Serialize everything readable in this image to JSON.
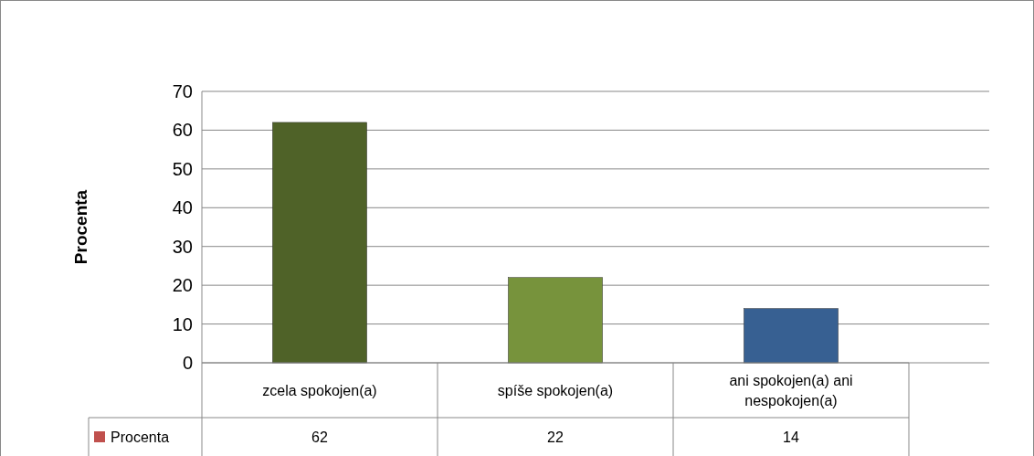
{
  "chart_data": {
    "type": "bar",
    "ylabel": "Procenta",
    "categories": [
      "zcela spokojen(a)",
      "spíše spokojen(a)",
      "ani spokojen(a) ani nespokojen(a)"
    ],
    "series": [
      {
        "name": "Procenta",
        "color": "#c0504d",
        "colors": [
          "#4f6228",
          "#77933c",
          "#376092"
        ],
        "values": [
          62,
          22,
          14
        ]
      }
    ],
    "ylim": [
      0,
      70
    ],
    "yticks": [
      0,
      10,
      20,
      30,
      40,
      50,
      60,
      70
    ],
    "grid": "y",
    "legend": "bottom",
    "data_labels": true
  }
}
